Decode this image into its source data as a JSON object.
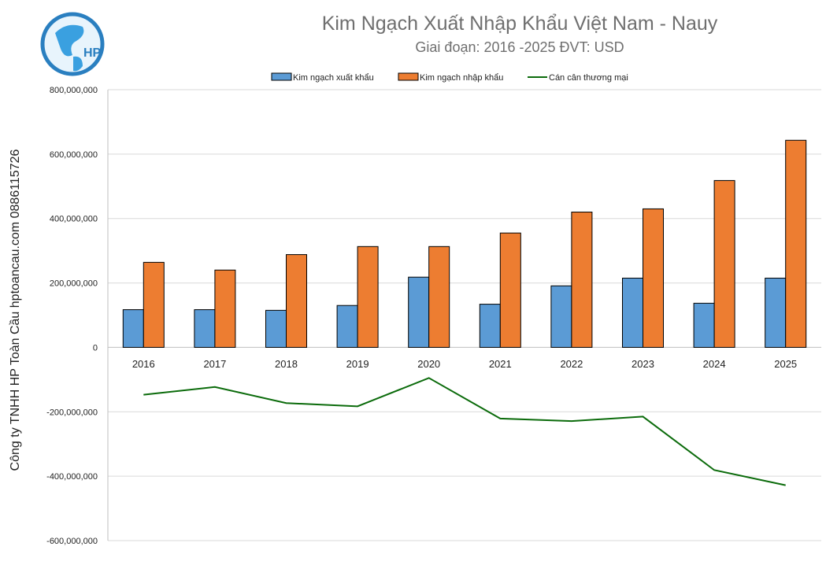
{
  "logo_text": "HP",
  "side_text": "Công ty TNHH HP Toàn Cầu hptoancau.com 0886115726",
  "chart_data": {
    "type": "bar",
    "title": "Kim Ngạch Xuất Nhập Khẩu Việt Nam - Nauy",
    "subtitle": "Giai đoạn: 2016 -2025  ĐVT: USD",
    "categories": [
      "2016",
      "2017",
      "2018",
      "2019",
      "2020",
      "2021",
      "2022",
      "2023",
      "2024",
      "2025"
    ],
    "series": [
      {
        "name": "Kim ngạch xuất khẩu",
        "type": "bar",
        "color": "#5b9bd5",
        "values": [
          117000000,
          117000000,
          115000000,
          130000000,
          218000000,
          134000000,
          191000000,
          215000000,
          137000000,
          215000000
        ]
      },
      {
        "name": "Kim ngạch nhập khẩu",
        "type": "bar",
        "color": "#ed7d31",
        "values": [
          264000000,
          240000000,
          288000000,
          313000000,
          313000000,
          355000000,
          420000000,
          430000000,
          518000000,
          643000000
        ]
      },
      {
        "name": "Cán cân thương mại",
        "type": "line",
        "color": "#0b6b0b",
        "values": [
          -147000000,
          -123000000,
          -173000000,
          -183000000,
          -95000000,
          -221000000,
          -229000000,
          -215000000,
          -381000000,
          -428000000
        ]
      }
    ],
    "ylim": [
      -600000000,
      800000000
    ],
    "yticks": [
      "800,000,000",
      "600,000,000",
      "400,000,000",
      "200,000,000",
      "0",
      "-200,000,000",
      "-400,000,000",
      "-600,000,000"
    ],
    "ytick_values": [
      800000000,
      600000000,
      400000000,
      200000000,
      0,
      -200000000,
      -400000000,
      -600000000
    ],
    "grid": true,
    "legend": "top"
  }
}
